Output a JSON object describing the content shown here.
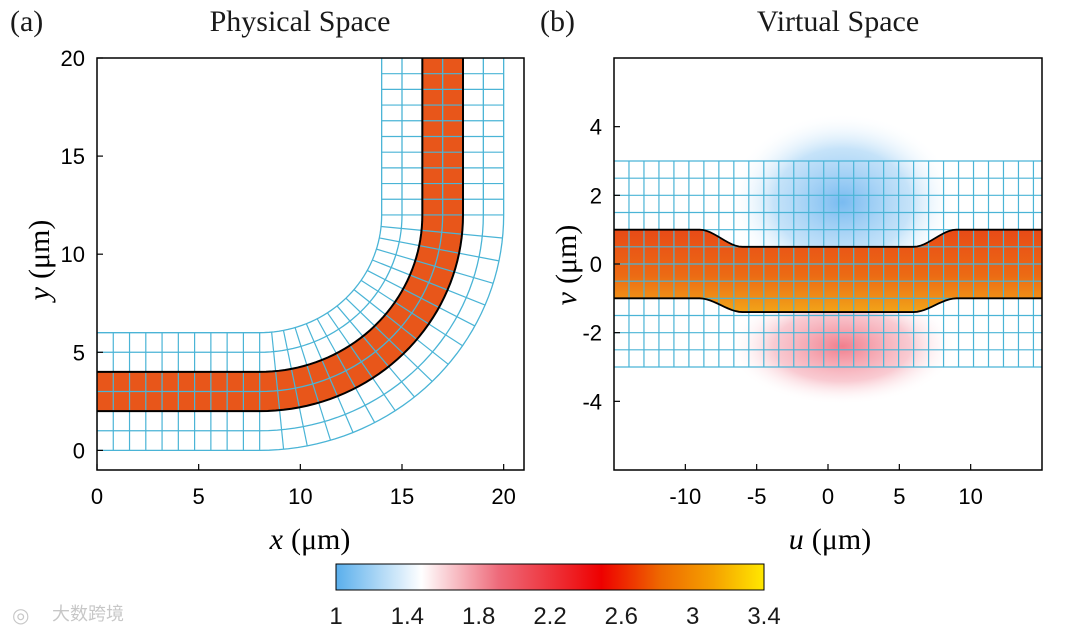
{
  "chart_data": [
    {
      "panel_label": "(a)",
      "title": "Physical Space",
      "type": "mesh",
      "xlabel_var": "x",
      "xlabel_unit": "(μm)",
      "ylabel_var": "y",
      "ylabel_unit": "(μm)",
      "xlim": [
        0,
        21
      ],
      "ylim": [
        -1,
        20
      ],
      "xticks": [
        0,
        5,
        10,
        15,
        20
      ],
      "yticks": [
        0,
        5,
        10,
        15,
        20
      ],
      "waveguide": {
        "inner_offset": 2,
        "outer_offset": 4,
        "straight_end_x": 8,
        "bend_center": [
          8,
          12
        ],
        "vertical_x": [
          16,
          18
        ],
        "top_y": 20,
        "color": "#e8561a"
      },
      "mesh": {
        "bands": [
          0,
          1,
          2,
          3,
          4,
          5,
          6
        ],
        "radius_min": 6,
        "radius_max": 12,
        "color": "#4ab4d6"
      }
    },
    {
      "panel_label": "(b)",
      "title": "Virtual Space",
      "type": "mesh",
      "xlabel_var": "u",
      "xlabel_unit": "(μm)",
      "ylabel_var": "v",
      "ylabel_unit": "(μm)",
      "xlim": [
        -15,
        15
      ],
      "ylim": [
        -6,
        6
      ],
      "xticks": [
        -10,
        -5,
        0,
        5,
        10
      ],
      "yticks": [
        -4,
        -2,
        0,
        2,
        4
      ],
      "waveguide": {
        "straight_half_width": 1,
        "narrow_top": 0.5,
        "narrow_bottom": -1.4,
        "narrow_range": [
          -6,
          6
        ],
        "taper_range": [
          -9,
          9
        ],
        "color": "#e8561a"
      },
      "mesh": {
        "v_range": [
          -3,
          3
        ],
        "u_range": [
          -15,
          15
        ],
        "color": "#4ab4d6"
      }
    }
  ],
  "colorbar": {
    "ticks": [
      "1",
      "1.4",
      "1.8",
      "2.2",
      "2.6",
      "3",
      "3.4"
    ],
    "min": 1,
    "max": 3.4,
    "stops": [
      "#5aafec",
      "#ffffff",
      "#ee6a7a",
      "#ee0000",
      "#ee6a00",
      "#f5a000",
      "#ffe800"
    ]
  },
  "watermark": "大数跨境"
}
